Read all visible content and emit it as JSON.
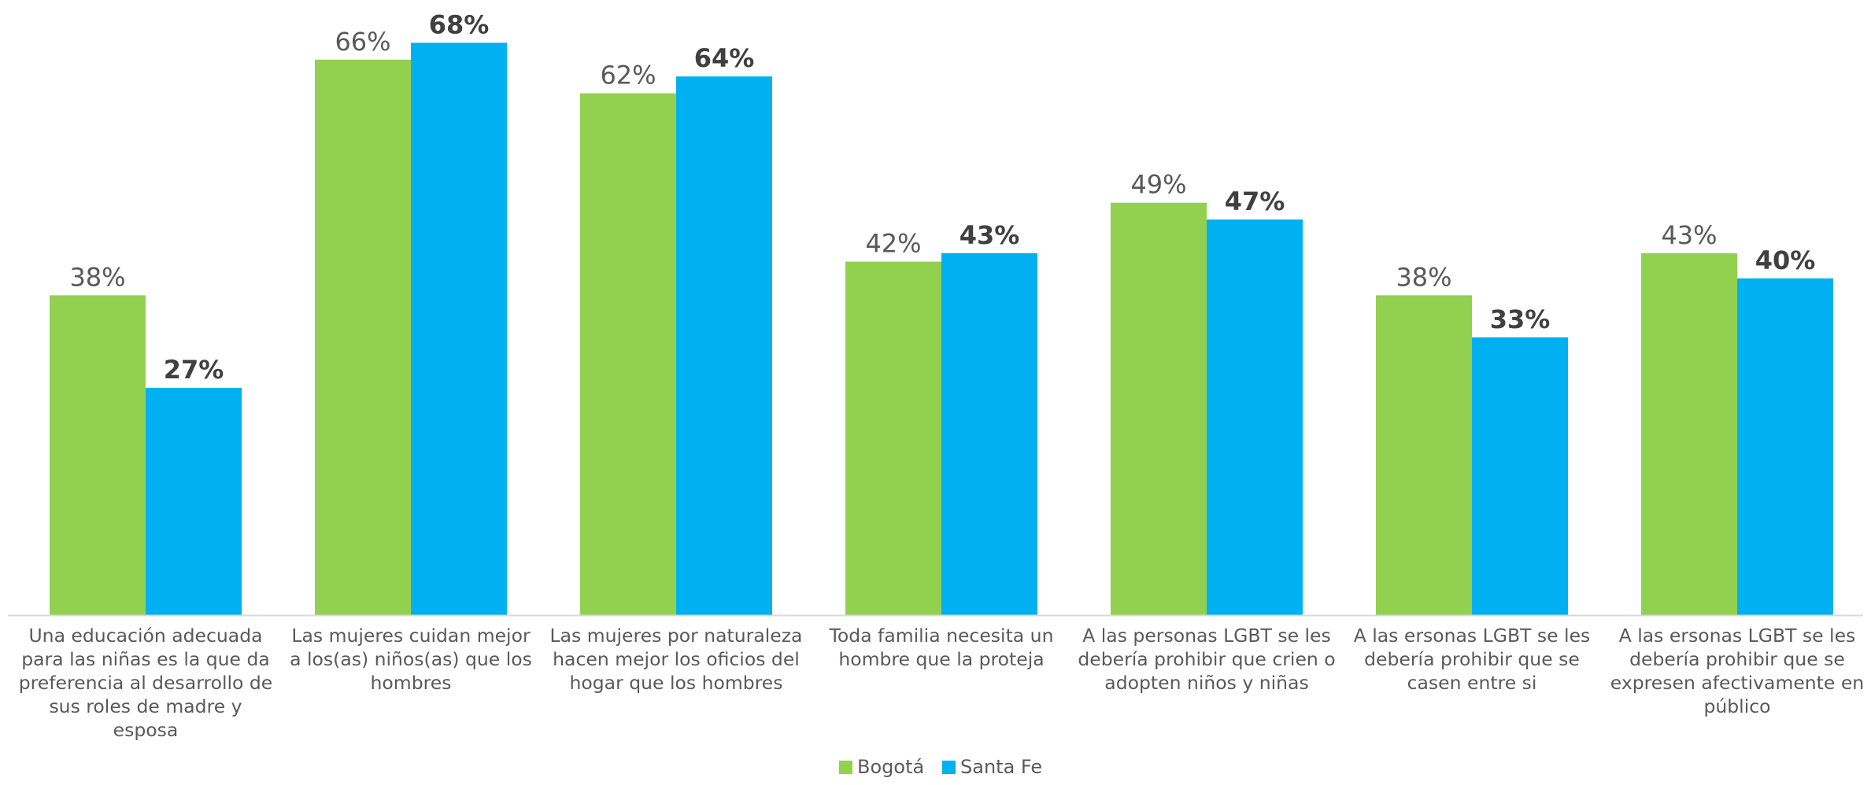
{
  "chart_data": {
    "type": "bar",
    "title": "",
    "xlabel": "",
    "ylabel": "",
    "ylim": [
      0,
      70
    ],
    "grid": false,
    "legend_position": "bottom",
    "categories": [
      [
        "Una educación adecuada",
        "para las niñas es la que da",
        "preferencia al desarrollo de",
        "sus roles de madre y",
        "esposa"
      ],
      [
        "Las mujeres cuidan mejor",
        "a los(as) niños(as) que los",
        "hombres"
      ],
      [
        "Las mujeres por naturaleza",
        "hacen mejor los oficios del",
        "hogar que los hombres"
      ],
      [
        "Toda familia necesita un",
        "hombre que la proteja"
      ],
      [
        "A las personas LGBT se les",
        "debería prohibir que crien o",
        "adopten niños y niñas"
      ],
      [
        "A las ersonas LGBT se les",
        "debería prohibir que se",
        "casen entre si"
      ],
      [
        "A las ersonas LGBT se les",
        "debería prohibir que se",
        "expresen afectivamente en",
        "público"
      ]
    ],
    "series": [
      {
        "name": "Bogotá",
        "color": "#92D050",
        "values": [
          38,
          66,
          62,
          42,
          49,
          38,
          43
        ],
        "labels": [
          "38%",
          "66%",
          "62%",
          "42%",
          "49%",
          "38%",
          "43%"
        ],
        "label_bold": false
      },
      {
        "name": "Santa Fe",
        "color": "#00B0F0",
        "values": [
          27,
          68,
          64,
          43,
          47,
          33,
          40
        ],
        "labels": [
          "27%",
          "68%",
          "64%",
          "43%",
          "47%",
          "33%",
          "40%"
        ],
        "label_bold": true
      }
    ]
  },
  "colors": {
    "text": "#595959",
    "value_bold": "#404040",
    "axis": "#D9D9D9"
  }
}
